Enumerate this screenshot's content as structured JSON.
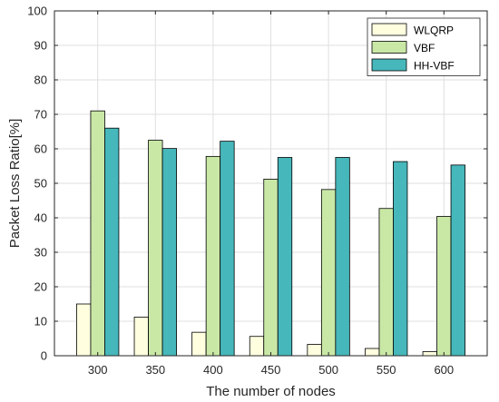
{
  "chart_data": {
    "type": "bar",
    "title": "",
    "xlabel": "The number of nodes",
    "ylabel": "Packet Loss Ratio[%]",
    "ylim": [
      0,
      100
    ],
    "yticks": [
      0,
      10,
      20,
      30,
      40,
      50,
      60,
      70,
      80,
      90,
      100
    ],
    "categories": [
      "300",
      "350",
      "400",
      "450",
      "500",
      "550",
      "600"
    ],
    "grid": true,
    "legend_position": "top-right",
    "series": [
      {
        "name": "WLQRP",
        "color": "#ffffe0",
        "values": [
          15,
          11.2,
          6.8,
          5.6,
          3.3,
          2.1,
          1.2
        ]
      },
      {
        "name": "VBF",
        "color": "#c9e8a6",
        "values": [
          71,
          62.5,
          57.8,
          51.2,
          48.2,
          42.7,
          40.4
        ]
      },
      {
        "name": "HH-VBF",
        "color": "#46b7bb",
        "values": [
          66,
          60.1,
          62.2,
          57.5,
          57.5,
          56.3,
          55.3
        ]
      }
    ]
  }
}
